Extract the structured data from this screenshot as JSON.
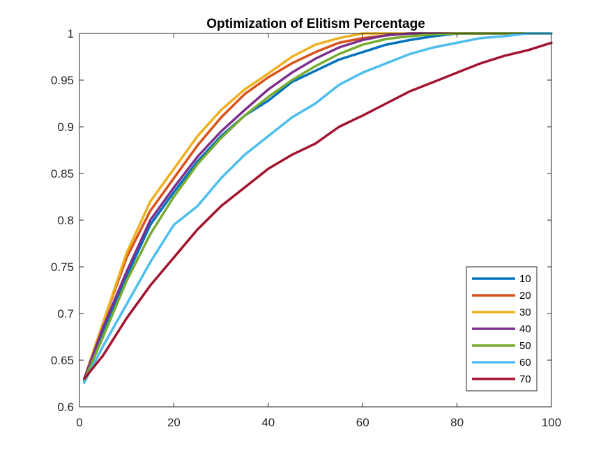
{
  "chart_data": {
    "type": "line",
    "title": "Optimization of Elitism Percentage",
    "xlabel": "",
    "ylabel": "",
    "xlim": [
      0,
      100
    ],
    "ylim": [
      0.6,
      1
    ],
    "xticks": [
      0,
      20,
      40,
      60,
      80,
      100
    ],
    "xtick_labels": [
      "0",
      "20",
      "40",
      "60",
      "80",
      "100"
    ],
    "yticks": [
      0.6,
      0.65,
      0.7,
      0.75,
      0.8,
      0.85,
      0.9,
      0.95,
      1
    ],
    "ytick_labels": [
      "0.6",
      "0.65",
      "0.7",
      "0.75",
      "0.8",
      "0.85",
      "0.9",
      "0.95",
      "1"
    ],
    "grid": false,
    "legend_position": "bottom-right",
    "series": [
      {
        "name": "10",
        "color": "#0072BD",
        "points": [
          [
            1,
            0.628
          ],
          [
            5,
            0.68
          ],
          [
            10,
            0.74
          ],
          [
            15,
            0.795
          ],
          [
            20,
            0.83
          ],
          [
            25,
            0.863
          ],
          [
            30,
            0.89
          ],
          [
            35,
            0.912
          ],
          [
            40,
            0.928
          ],
          [
            45,
            0.948
          ],
          [
            50,
            0.96
          ],
          [
            55,
            0.972
          ],
          [
            60,
            0.98
          ],
          [
            65,
            0.988
          ],
          [
            70,
            0.993
          ],
          [
            75,
            0.997
          ],
          [
            80,
            1
          ],
          [
            90,
            1
          ],
          [
            100,
            1
          ]
        ]
      },
      {
        "name": "20",
        "color": "#D95319",
        "points": [
          [
            1,
            0.63
          ],
          [
            5,
            0.69
          ],
          [
            10,
            0.76
          ],
          [
            15,
            0.81
          ],
          [
            20,
            0.845
          ],
          [
            25,
            0.88
          ],
          [
            30,
            0.91
          ],
          [
            35,
            0.935
          ],
          [
            40,
            0.953
          ],
          [
            45,
            0.968
          ],
          [
            50,
            0.98
          ],
          [
            55,
            0.99
          ],
          [
            60,
            0.995
          ],
          [
            65,
            0.998
          ],
          [
            70,
            1
          ],
          [
            100,
            1
          ]
        ]
      },
      {
        "name": "30",
        "color": "#EDB120",
        "points": [
          [
            1,
            0.63
          ],
          [
            5,
            0.69
          ],
          [
            10,
            0.765
          ],
          [
            15,
            0.82
          ],
          [
            20,
            0.855
          ],
          [
            25,
            0.89
          ],
          [
            30,
            0.918
          ],
          [
            35,
            0.94
          ],
          [
            40,
            0.957
          ],
          [
            45,
            0.975
          ],
          [
            50,
            0.988
          ],
          [
            55,
            0.995
          ],
          [
            60,
            1
          ],
          [
            100,
            1
          ]
        ]
      },
      {
        "name": "40",
        "color": "#7E2F8E",
        "points": [
          [
            1,
            0.63
          ],
          [
            5,
            0.685
          ],
          [
            10,
            0.745
          ],
          [
            15,
            0.8
          ],
          [
            20,
            0.835
          ],
          [
            25,
            0.868
          ],
          [
            30,
            0.895
          ],
          [
            35,
            0.918
          ],
          [
            40,
            0.94
          ],
          [
            45,
            0.958
          ],
          [
            50,
            0.973
          ],
          [
            55,
            0.985
          ],
          [
            60,
            0.993
          ],
          [
            65,
            0.998
          ],
          [
            70,
            1
          ],
          [
            100,
            1
          ]
        ]
      },
      {
        "name": "50",
        "color": "#77AC30",
        "points": [
          [
            1,
            0.628
          ],
          [
            5,
            0.675
          ],
          [
            10,
            0.735
          ],
          [
            15,
            0.785
          ],
          [
            20,
            0.825
          ],
          [
            25,
            0.86
          ],
          [
            30,
            0.888
          ],
          [
            35,
            0.912
          ],
          [
            40,
            0.932
          ],
          [
            45,
            0.95
          ],
          [
            50,
            0.965
          ],
          [
            55,
            0.978
          ],
          [
            60,
            0.988
          ],
          [
            65,
            0.994
          ],
          [
            70,
            0.997
          ],
          [
            75,
            0.999
          ],
          [
            80,
            1
          ],
          [
            100,
            1
          ]
        ]
      },
      {
        "name": "60",
        "color": "#4DBEEE",
        "points": [
          [
            1,
            0.626
          ],
          [
            5,
            0.665
          ],
          [
            10,
            0.71
          ],
          [
            15,
            0.755
          ],
          [
            20,
            0.795
          ],
          [
            25,
            0.815
          ],
          [
            30,
            0.845
          ],
          [
            35,
            0.87
          ],
          [
            40,
            0.89
          ],
          [
            45,
            0.91
          ],
          [
            50,
            0.925
          ],
          [
            55,
            0.945
          ],
          [
            60,
            0.958
          ],
          [
            65,
            0.968
          ],
          [
            70,
            0.978
          ],
          [
            75,
            0.985
          ],
          [
            80,
            0.99
          ],
          [
            85,
            0.995
          ],
          [
            90,
            0.997
          ],
          [
            95,
            1
          ],
          [
            100,
            1
          ]
        ]
      },
      {
        "name": "70",
        "color": "#A2142F",
        "points": [
          [
            1,
            0.63
          ],
          [
            5,
            0.655
          ],
          [
            10,
            0.695
          ],
          [
            15,
            0.73
          ],
          [
            20,
            0.76
          ],
          [
            25,
            0.79
          ],
          [
            30,
            0.815
          ],
          [
            35,
            0.835
          ],
          [
            40,
            0.855
          ],
          [
            45,
            0.87
          ],
          [
            50,
            0.882
          ],
          [
            55,
            0.9
          ],
          [
            60,
            0.912
          ],
          [
            65,
            0.925
          ],
          [
            70,
            0.938
          ],
          [
            75,
            0.948
          ],
          [
            80,
            0.958
          ],
          [
            85,
            0.968
          ],
          [
            90,
            0.976
          ],
          [
            95,
            0.982
          ],
          [
            100,
            0.99
          ]
        ]
      }
    ]
  }
}
